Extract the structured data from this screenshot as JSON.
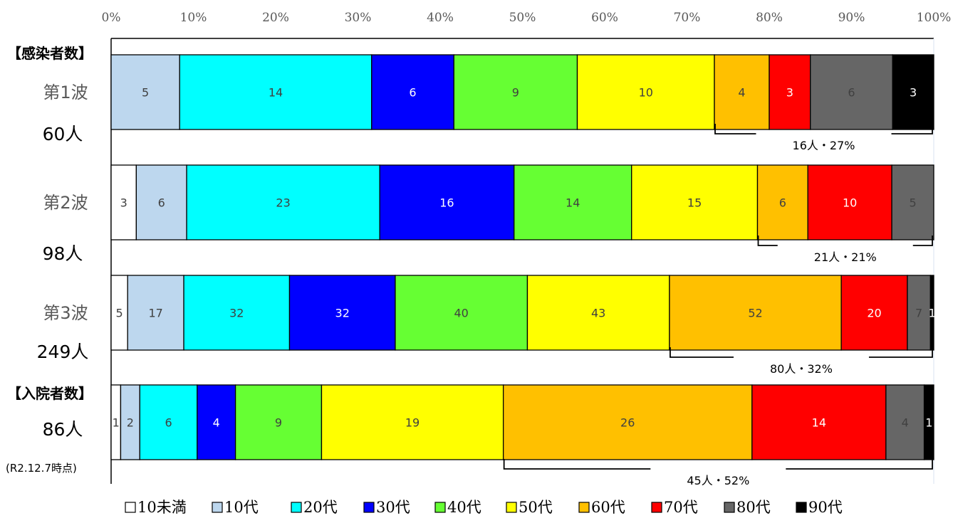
{
  "chart_data": {
    "type": "bar",
    "orientation": "horizontal",
    "stacking": "100%",
    "x_ticks": [
      "0%",
      "10%",
      "20%",
      "30%",
      "40%",
      "50%",
      "60%",
      "70%",
      "80%",
      "90%",
      "100%"
    ],
    "xlim": [
      0,
      100
    ],
    "section_labels": {
      "infections": "【感染者数】",
      "hospitalized": "【入院者数】"
    },
    "note": "(R2.12.7時点)",
    "series": [
      {
        "name": "10未満",
        "color": "#ffffff"
      },
      {
        "name": "10代",
        "color": "#bdd7ee"
      },
      {
        "name": "20代",
        "color": "#00ffff"
      },
      {
        "name": "30代",
        "color": "#0000ff"
      },
      {
        "name": "40代",
        "color": "#66ff33"
      },
      {
        "name": "50代",
        "color": "#ffff00"
      },
      {
        "name": "60代",
        "color": "#ffc000"
      },
      {
        "name": "70代",
        "color": "#ff0000"
      },
      {
        "name": "80代",
        "color": "#666666"
      },
      {
        "name": "90代",
        "color": "#000000"
      }
    ],
    "rows": [
      {
        "label": "第1波",
        "total": "60人",
        "values": [
          0,
          5,
          14,
          6,
          9,
          10,
          4,
          3,
          6,
          3
        ],
        "bracket": "16人・27%"
      },
      {
        "label": "第2波",
        "total": "98人",
        "values": [
          3,
          6,
          23,
          16,
          14,
          15,
          6,
          10,
          5,
          0
        ],
        "bracket": "21人・21%"
      },
      {
        "label": "第3波",
        "total": "249人",
        "values": [
          5,
          17,
          32,
          32,
          40,
          43,
          52,
          20,
          7,
          1
        ],
        "bracket": "80人・32%"
      },
      {
        "label": "",
        "total": "86人",
        "values": [
          1,
          2,
          6,
          4,
          9,
          19,
          26,
          14,
          4,
          1
        ],
        "bracket": "45人・52%"
      }
    ]
  }
}
